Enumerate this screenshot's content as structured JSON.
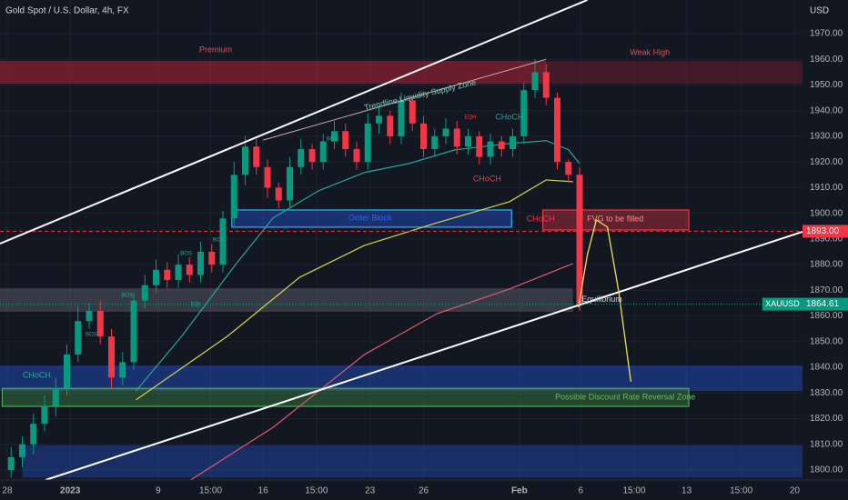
{
  "chart_data": {
    "type": "candlestick",
    "title": "Gold Spot / U.S. Dollar, 4h, FX",
    "currency": "USD",
    "symbol": "XAUUSD",
    "xlim": [
      0,
      72
    ],
    "ylim": [
      1796.1,
      1983.1
    ],
    "yticks": [
      {
        "value": 1800,
        "label": "1800.00"
      },
      {
        "value": 1810,
        "label": "1810.00"
      },
      {
        "value": 1820,
        "label": "1820.00"
      },
      {
        "value": 1830,
        "label": "1830.00"
      },
      {
        "value": 1840,
        "label": "1840.00"
      },
      {
        "value": 1850,
        "label": "1850.00"
      },
      {
        "value": 1860,
        "label": "1860.00"
      },
      {
        "value": 1870,
        "label": "1870.00"
      },
      {
        "value": 1880,
        "label": "1880.00"
      },
      {
        "value": 1890,
        "label": "1890.00"
      },
      {
        "value": 1900,
        "label": "1900.00"
      },
      {
        "value": 1910,
        "label": "1910.00"
      },
      {
        "value": 1920,
        "label": "1920.00"
      },
      {
        "value": 1930,
        "label": "1930.00"
      },
      {
        "value": 1940,
        "label": "1940.00"
      },
      {
        "value": 1950,
        "label": "1950.00"
      },
      {
        "value": 1960,
        "label": "1960.00"
      },
      {
        "value": 1970,
        "label": "1970.00"
      }
    ],
    "xticks": [
      {
        "value": 0.65,
        "label": "28"
      },
      {
        "value": 6.3,
        "label": "2023"
      },
      {
        "value": 14.2,
        "label": "9"
      },
      {
        "value": 18.9,
        "label": "15:00"
      },
      {
        "value": 23.6,
        "label": "16"
      },
      {
        "value": 28.4,
        "label": "15:00"
      },
      {
        "value": 33.2,
        "label": "23"
      },
      {
        "value": 38,
        "label": "26"
      },
      {
        "value": 46.6,
        "label": "Feb"
      },
      {
        "value": 52.1,
        "label": "6"
      },
      {
        "value": 56.9,
        "label": "15:00"
      },
      {
        "value": 61.6,
        "label": "13"
      },
      {
        "value": 66.5,
        "label": "15:00"
      },
      {
        "value": 71.3,
        "label": "20"
      }
    ],
    "grid": true,
    "up_color": "#089981",
    "down_color": "#f23645",
    "x": [
      1,
      2,
      3,
      4,
      5,
      6,
      7,
      8,
      9,
      10,
      11,
      12,
      13,
      14,
      15,
      16,
      17,
      18,
      19,
      20,
      21,
      22,
      23,
      24,
      25,
      26,
      27,
      28,
      29,
      30,
      31,
      32,
      33,
      34,
      35,
      36,
      37,
      38,
      39,
      40,
      41,
      42,
      43,
      44,
      45,
      46,
      47,
      48,
      49,
      50,
      51,
      52
    ],
    "open": [
      1800,
      1805,
      1810,
      1818,
      1825,
      1832,
      1845,
      1858,
      1862,
      1852,
      1836,
      1842,
      1866,
      1872,
      1878,
      1874,
      1880,
      1876,
      1885,
      1880,
      1898,
      1915,
      1926,
      1918,
      1910,
      1905,
      1918,
      1925,
      1920,
      1928,
      1932,
      1925,
      1920,
      1935,
      1938,
      1930,
      1944,
      1935,
      1925,
      1930,
      1933,
      1926,
      1930,
      1922,
      1928,
      1925,
      1930,
      1948,
      1955,
      1945,
      1920,
      1915
    ],
    "high": [
      1809,
      1813,
      1822,
      1829,
      1836,
      1849,
      1864,
      1865,
      1866,
      1855,
      1846,
      1869,
      1876,
      1882,
      1881,
      1884,
      1883,
      1889,
      1888,
      1901,
      1920,
      1930,
      1929,
      1921,
      1912,
      1922,
      1929,
      1927,
      1931,
      1936,
      1935,
      1928,
      1939,
      1942,
      1940,
      1947,
      1946,
      1938,
      1933,
      1937,
      1936,
      1933,
      1932,
      1931,
      1930,
      1933,
      1951,
      1960,
      1958,
      1947,
      1921,
      1918
    ],
    "low": [
      1797,
      1801,
      1806,
      1815,
      1821,
      1829,
      1842,
      1855,
      1849,
      1832,
      1833,
      1839,
      1863,
      1869,
      1871,
      1871,
      1873,
      1873,
      1877,
      1877,
      1895,
      1911,
      1915,
      1906,
      1902,
      1902,
      1915,
      1917,
      1917,
      1925,
      1922,
      1917,
      1917,
      1931,
      1927,
      1927,
      1932,
      1922,
      1922,
      1927,
      1923,
      1923,
      1919,
      1919,
      1922,
      1922,
      1927,
      1945,
      1942,
      1917,
      1912,
      1862
    ],
    "close": [
      1805,
      1810,
      1818,
      1825,
      1832,
      1845,
      1858,
      1862,
      1852,
      1836,
      1842,
      1866,
      1872,
      1878,
      1874,
      1880,
      1876,
      1885,
      1880,
      1898,
      1915,
      1926,
      1918,
      1910,
      1905,
      1918,
      1925,
      1920,
      1928,
      1932,
      1925,
      1920,
      1935,
      1938,
      1930,
      1944,
      1935,
      1925,
      1930,
      1933,
      1926,
      1930,
      1922,
      1928,
      1925,
      1930,
      1948,
      1955,
      1945,
      1920,
      1915,
      1864.61
    ],
    "lines": [
      {
        "color": "#26a69a",
        "x": [
          12.2,
          16.3,
          21.2,
          24.5,
          28.6,
          32.7,
          36.7,
          40.8,
          45.7,
          49,
          51,
          52
        ],
        "values": [
          1830.8,
          1852.1,
          1880.4,
          1898.2,
          1908.8,
          1915.9,
          1919.4,
          1924.7,
          1927.2,
          1928.3,
          1924.8,
          1919.4
        ]
      },
      {
        "color": "#d4d44a",
        "x": [
          12.2,
          20.4,
          26.9,
          32.7,
          39.2,
          45.7,
          49,
          51.4
        ],
        "values": [
          1827.3,
          1852.1,
          1875.1,
          1887.5,
          1896.3,
          1904.5,
          1913,
          1912.3
        ]
      },
      {
        "color": "#e05a6a",
        "x": [
          17.1,
          24.5,
          32.7,
          39.2,
          45.7,
          51.4
        ],
        "values": [
          1796.1,
          1816.6,
          1845,
          1860.9,
          1870.5,
          1880.4
        ]
      }
    ],
    "zones": [
      {
        "x": [
          0,
          49
        ],
        "y": [
          1950.5,
          1959.4
        ],
        "color": "rgba(178,34,52,0.55)"
      },
      {
        "x": [
          49,
          72
        ],
        "y": [
          1950.5,
          1959.4
        ],
        "color": "rgba(178,34,52,0.3)"
      },
      {
        "x": [
          0,
          51.4
        ],
        "y": [
          1861.6,
          1870.8
        ],
        "color": "rgba(120,123,134,0.35)"
      },
      {
        "x": [
          0,
          72
        ],
        "y": [
          1830.8,
          1840.7
        ],
        "color": "rgba(41,98,255,0.35)"
      },
      {
        "x": [
          2,
          72
        ],
        "y": [
          1797,
          1809.6
        ],
        "color": "rgba(41,98,255,0.3)"
      },
      {
        "x": [
          0.2,
          61.8
        ],
        "y": [
          1824.8,
          1831.8
        ],
        "color": "rgba(76,175,80,0.3)",
        "border": "#4caf50"
      },
      {
        "x": [
          20.8,
          45.9
        ],
        "y": [
          1894.6,
          1901.3
        ],
        "color": "rgba(41,98,255,0.35)",
        "border": "#29b6f6"
      },
      {
        "x": [
          48.7,
          61.8
        ],
        "y": [
          1893.5,
          1901.3
        ],
        "color": "rgba(242,54,69,0.35)",
        "border": "#f23645"
      }
    ],
    "trendlines": [
      {
        "color": "#ffffff",
        "x": [
          0,
          52.7
        ],
        "y": [
          1888.2,
          1983.1
        ]
      },
      {
        "color": "#ffffff",
        "x": [
          4.08,
          72
        ],
        "y": [
          1796.1,
          1892.8
        ]
      },
      {
        "color": "#c8a8a8",
        "x": [
          23.6,
          49
        ],
        "y": [
          1928.5,
          1960
        ]
      }
    ],
    "projection": {
      "color": "#e8e35a",
      "x": [
        51.9,
        52.7,
        53.5,
        54.5,
        55.5,
        56.6
      ],
      "values": [
        1863.4,
        1883.9,
        1897.4,
        1894.6,
        1869.8,
        1834.4
      ]
    },
    "level": {
      "value": 1893,
      "label": "1893.00",
      "color": "#f23645"
    },
    "last": 1864.61,
    "annotations": [
      {
        "text": "Premium",
        "x": 19.35,
        "y": 1963.6,
        "color": "#e0505a"
      },
      {
        "text": "Weak High",
        "x": 58.3,
        "y": 1962.6,
        "color": "#e0505a"
      },
      {
        "text": "Trendline Liquidity Supply Zone",
        "x": 37.7,
        "y": 1945.9,
        "color": "#7ecdc3",
        "angle": -13
      },
      {
        "text": "Order Block",
        "x": 33.2,
        "y": 1898.1,
        "color": "#2962ff"
      },
      {
        "text": "FVG to be filled",
        "x": 55.2,
        "y": 1897.7,
        "color": "#ff8a8a"
      },
      {
        "text": "Possible Discount Rate Reversal Zone",
        "x": 56.1,
        "y": 1828.3,
        "color": "#66bb6a"
      },
      {
        "text": "Equilibrium",
        "x": 54,
        "y": 1866.4,
        "color": "#d1d4dc"
      },
      {
        "text": "BOS",
        "x": 8.2,
        "y": 1852.8,
        "color": "#26a69a"
      },
      {
        "text": "BOS",
        "x": 11.4,
        "y": 1868,
        "color": "#26a69a"
      },
      {
        "text": "BOS",
        "x": 16.7,
        "y": 1884.3,
        "color": "#26a69a"
      },
      {
        "text": "BOS",
        "x": 19.6,
        "y": 1889.6,
        "color": "#26a69a"
      },
      {
        "text": "BOS",
        "x": 29.8,
        "y": 1928.9,
        "color": "#26a69a"
      },
      {
        "text": "EQH",
        "x": 42.2,
        "y": 1937.4,
        "color": "#f23645"
      },
      {
        "text": "CHoCH",
        "x": 45.7,
        "y": 1937.4,
        "color": "#26a69a"
      },
      {
        "text": "CHoCH",
        "x": 43.7,
        "y": 1913.3,
        "color": "#f23645"
      },
      {
        "text": "CHoCH",
        "x": 48.5,
        "y": 1897.7,
        "color": "#f23645"
      },
      {
        "text": "CHoCH",
        "x": 3.3,
        "y": 1836.8,
        "color": "#26a69a"
      },
      {
        "text": "EQL",
        "x": 17.6,
        "y": 1864.5,
        "color": "#26a69a"
      }
    ]
  }
}
